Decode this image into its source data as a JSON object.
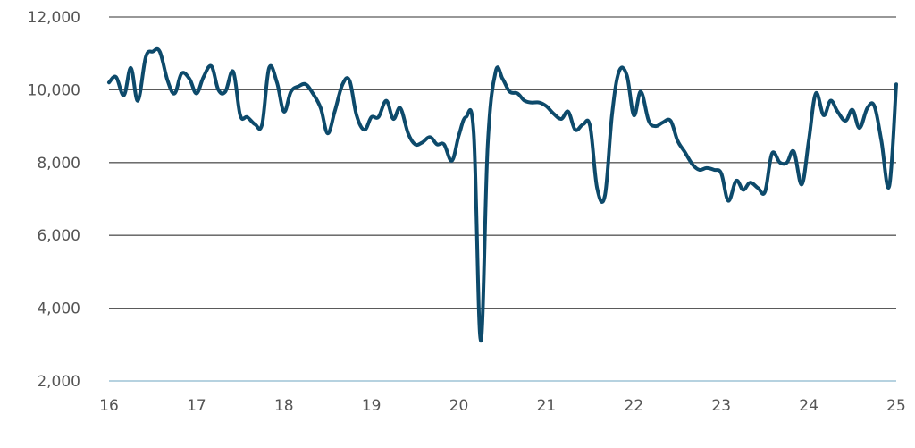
{
  "chart_data": {
    "type": "line",
    "title": "",
    "xlabel": "",
    "ylabel": "",
    "xlim": [
      16,
      25
    ],
    "ylim": [
      2000,
      12000
    ],
    "grid": true,
    "x_ticks": [
      16,
      17,
      18,
      19,
      20,
      21,
      22,
      23,
      24,
      25
    ],
    "x_tick_labels": [
      "16",
      "17",
      "18",
      "19",
      "20",
      "21",
      "22",
      "23",
      "24",
      "25"
    ],
    "y_ticks": [
      2000,
      4000,
      6000,
      8000,
      10000,
      12000
    ],
    "y_tick_labels": [
      "2,000",
      "4,000",
      "6,000",
      "8,000",
      "10,000",
      "12,000"
    ],
    "colors": {
      "line": "#0d4a6b",
      "grid": "#5a5a5a",
      "axis": "#9ec3d6"
    },
    "series": [
      {
        "x": [
          16.0,
          16.08,
          16.17,
          16.25,
          16.33,
          16.42,
          16.5,
          16.58,
          16.67,
          16.75,
          16.83,
          16.92,
          17.0,
          17.08,
          17.17,
          17.25,
          17.33,
          17.42,
          17.5,
          17.58,
          17.67,
          17.75,
          17.83,
          17.92,
          18.0,
          18.08,
          18.17,
          18.25,
          18.33,
          18.42,
          18.5,
          18.58,
          18.67,
          18.75,
          18.83,
          18.92,
          19.0,
          19.08,
          19.17,
          19.25,
          19.33,
          19.42,
          19.5,
          19.58,
          19.67,
          19.75,
          19.83,
          19.92,
          20.0,
          20.08,
          20.17,
          20.25,
          20.33,
          20.42,
          20.5,
          20.58,
          20.67,
          20.75,
          20.83,
          20.92,
          21.0,
          21.08,
          21.17,
          21.25,
          21.33,
          21.42,
          21.5,
          21.58,
          21.67,
          21.75,
          21.83,
          21.92,
          22.0,
          22.08,
          22.17,
          22.25,
          22.33,
          22.42,
          22.5,
          22.58,
          22.67,
          22.75,
          22.83,
          22.92,
          23.0,
          23.08,
          23.17,
          23.25,
          23.33,
          23.42,
          23.5,
          23.58,
          23.67,
          23.75,
          23.83,
          23.92,
          24.0,
          24.08,
          24.17,
          24.25,
          24.33,
          24.42,
          24.5,
          24.58,
          24.67,
          24.75,
          24.83,
          24.92,
          25.0
        ],
        "y": [
          10200,
          10350,
          9850,
          10600,
          9700,
          10900,
          11050,
          11050,
          10250,
          9900,
          10450,
          10300,
          9900,
          10350,
          10650,
          10000,
          9950,
          10500,
          9300,
          9250,
          9050,
          9050,
          10600,
          10200,
          9400,
          9950,
          10100,
          10150,
          9900,
          9500,
          8800,
          9400,
          10150,
          10250,
          9300,
          8900,
          9250,
          9250,
          9700,
          9200,
          9500,
          8800,
          8500,
          8550,
          8700,
          8500,
          8500,
          8050,
          8750,
          9250,
          8800,
          3100,
          8500,
          10500,
          10300,
          9950,
          9900,
          9700,
          9650,
          9650,
          9550,
          9350,
          9200,
          9400,
          8900,
          9050,
          9000,
          7300,
          7100,
          9300,
          10500,
          10400,
          9300,
          9950,
          9150,
          9000,
          9100,
          9150,
          8600,
          8300,
          7950,
          7800,
          7850,
          7800,
          7700,
          6950,
          7500,
          7250,
          7450,
          7300,
          7200,
          8250,
          8000,
          8000,
          8300,
          7400,
          8600,
          9900,
          9300,
          9700,
          9400,
          9150,
          9450,
          8950,
          9500,
          9550,
          8600,
          7350,
          10150
        ]
      }
    ]
  }
}
